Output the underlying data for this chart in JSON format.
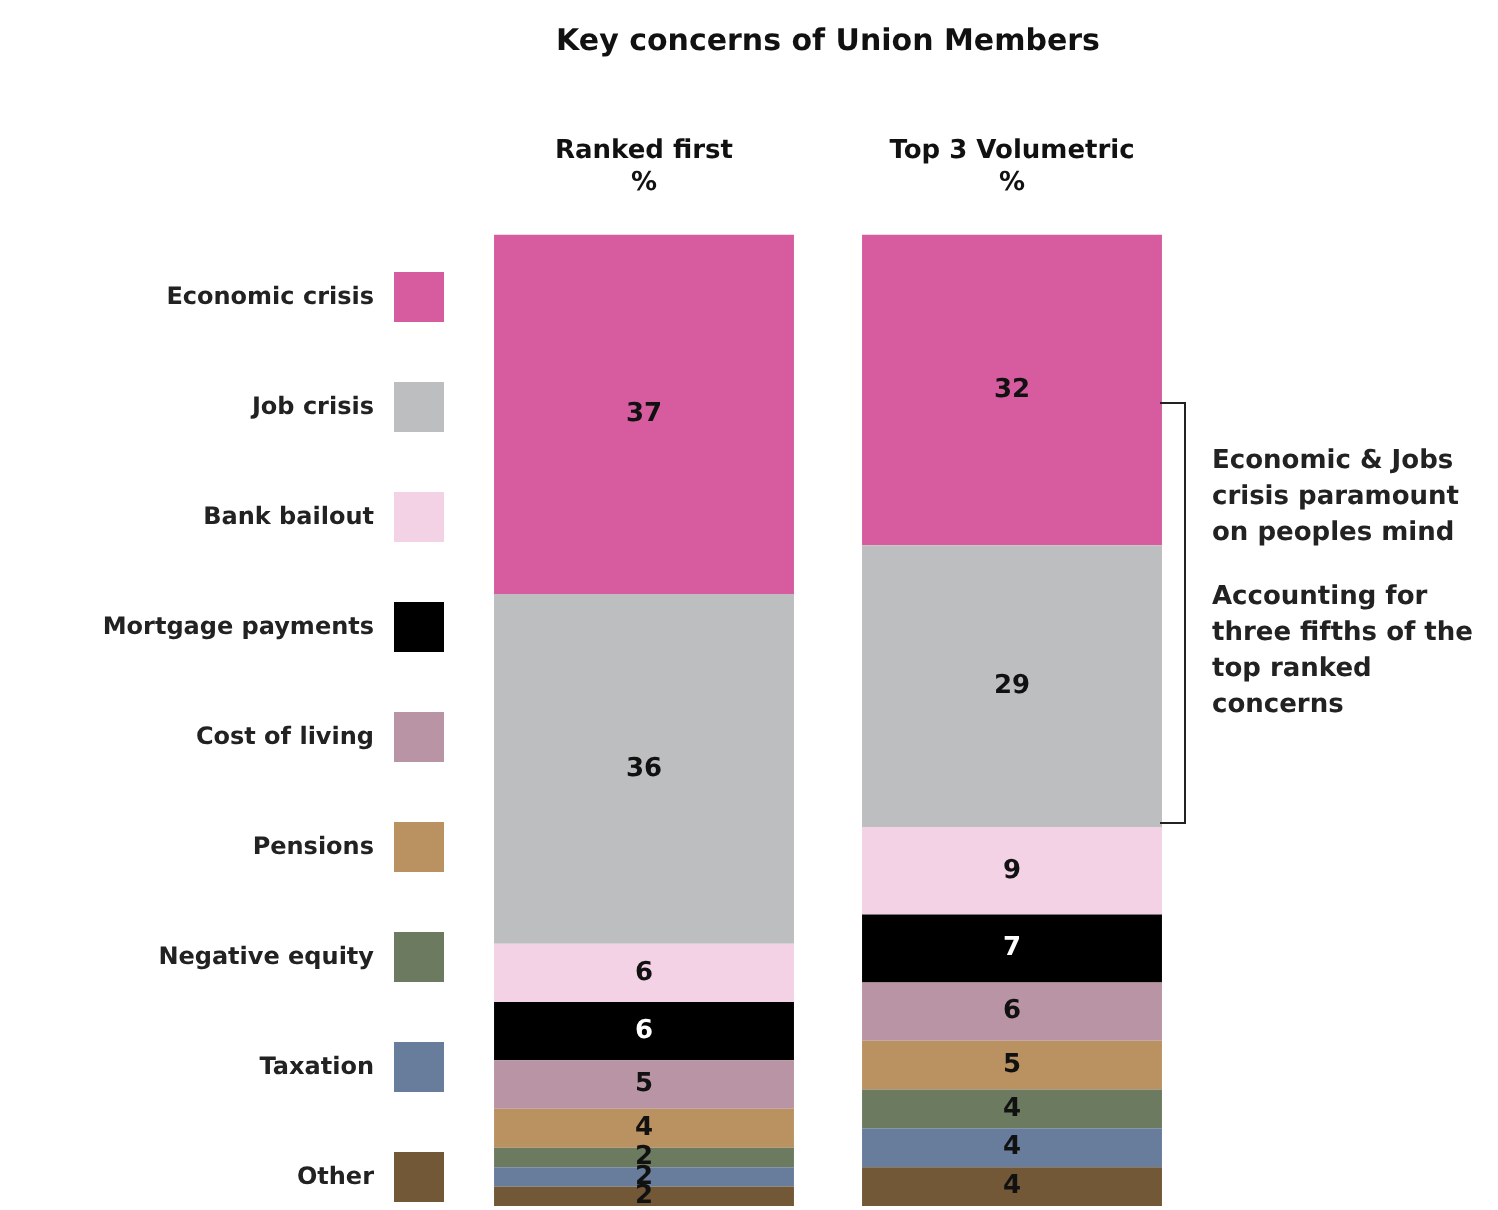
{
  "chart_data": {
    "type": "bar",
    "title": "Key concerns of Union Members",
    "categories": [
      "Ranked first\n%",
      "Top 3 Volumetric\n%"
    ],
    "stacked": true,
    "data_labels": true,
    "legend": "left",
    "grid": false,
    "tick_labels": "x",
    "ylim": [
      0,
      100
    ],
    "series": [
      {
        "name": "Other",
        "color": "#735838",
        "values": [
          2,
          4
        ]
      },
      {
        "name": "Taxation",
        "color": "#687c9c",
        "values": [
          2,
          4
        ]
      },
      {
        "name": "Negative equity",
        "color": "#6c7b60",
        "values": [
          2,
          4
        ]
      },
      {
        "name": "Pensions",
        "color": "#ba9262",
        "values": [
          4,
          5
        ]
      },
      {
        "name": "Cost of living",
        "color": "#b994a4",
        "values": [
          5,
          6
        ]
      },
      {
        "name": "Mortgage payments",
        "color": "#000000",
        "values": [
          6,
          7
        ]
      },
      {
        "name": "Bank bailout",
        "color": "#f4d2e6",
        "values": [
          6,
          9
        ]
      },
      {
        "name": "Job crisis",
        "color": "#bdbec0",
        "values": [
          36,
          29
        ]
      },
      {
        "name": "Economic crisis",
        "color": "#d75c9f",
        "values": [
          37,
          32
        ]
      }
    ],
    "annotations": [
      "Economic & Jobs crisis paramount on peoples mind",
      "Accounting for three fifths of the top ranked concerns"
    ]
  }
}
